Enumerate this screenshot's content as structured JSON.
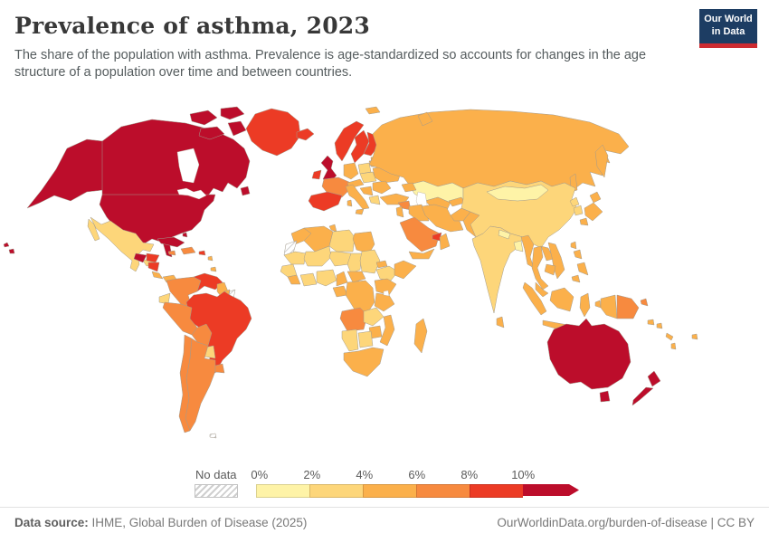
{
  "header": {
    "title": "Prevalence of asthma, 2023",
    "subtitle": "The share of the population with asthma. Prevalence is age-standardized so accounts for changes in the age structure of a population over time and between countries.",
    "logo": {
      "line1": "Our World",
      "line2": "in Data",
      "bg_color": "#1d3d63",
      "accent_color": "#cd2b31"
    }
  },
  "chart_data": {
    "type": "heatmap",
    "variant": "choropleth-world-map",
    "title": "Prevalence of asthma, 2023",
    "metric": "Share of the population with asthma (age-standardized)",
    "year": "2023",
    "legend": {
      "no_data_label": "No data",
      "tick_labels": [
        "0%",
        "2%",
        "4%",
        "6%",
        "8%",
        "10%"
      ],
      "bin_ranges": [
        "0–2%",
        "2–4%",
        "4–6%",
        "6–8%",
        "8–10%",
        "10%+"
      ],
      "bin_colors": [
        "#fef3a7",
        "#fdd67a",
        "#fbb04b",
        "#f78a3f",
        "#ec3b25",
        "#bc0d2b"
      ],
      "no_data_pattern": "gray-diagonal-hatch",
      "position": "bottom"
    },
    "region_bins": {
      "canada": 5,
      "alaska": 5,
      "usa": 5,
      "hawaii": 5,
      "greenland": 4,
      "mexico": 1,
      "guatemala": 5,
      "honduras": 4,
      "nicaragua": 4,
      "costa-rica": 2,
      "panama": 2,
      "cuba": 5,
      "bahamas": 5,
      "jamaica": 3,
      "hispaniola": 3,
      "puerto-rico": 4,
      "lesser-antilles": 2,
      "trinidad": 2,
      "colombia": 3,
      "venezuela": 4,
      "guyana": 2,
      "suriname": 2,
      "french-guiana": "nodata",
      "ecuador": 1,
      "peru": 3,
      "brazil": 4,
      "bolivia": 3,
      "paraguay": 1,
      "uruguay": 3,
      "argentina": 3,
      "chile": 3,
      "falkland-islands": "nodata",
      "iceland": 4,
      "uk": 5,
      "ireland": 4,
      "norway": 4,
      "sweden": 4,
      "finland": 4,
      "denmark": 2,
      "baltics": 2,
      "germany": 2,
      "france": 3,
      "spain-portugal": 4,
      "italy": 2,
      "sicily": 2,
      "sardinia": 2,
      "alpine-states": 2,
      "poland": 1,
      "belarus": 2,
      "ukraine": 2,
      "czech-hungary": 1,
      "romania-bulgaria": 2,
      "balkans": 2,
      "greece": 1,
      "russia": 2,
      "svalbard": 2,
      "novaya-zemlya": 2,
      "kamchatka": 2,
      "sakhalin": 2,
      "turkey": 2,
      "caucasus": 2,
      "syria": 3,
      "iraq": 2,
      "jordan-israel": 2,
      "saudi-arabia": 3,
      "uae-qatar": 4,
      "oman": 2,
      "yemen": 2,
      "iran": 2,
      "kazakhstan": 0,
      "central-asia": 2,
      "kyrgyz-tajik": 2,
      "afghanistan": 2,
      "pakistan": 2,
      "india": 1,
      "nepal": 0,
      "bangladesh": 0,
      "sri-lanka": 2,
      "china": 1,
      "mongolia": 0,
      "north-korea": 1,
      "south-korea": 1,
      "japan": 2,
      "taiwan": 2,
      "myanmar": 2,
      "thailand": 2,
      "laos": 2,
      "vietnam": 2,
      "cambodia": 2,
      "malaysia": 2,
      "indonesia": 2,
      "timor": 2,
      "philippines": 2,
      "indonesian-papua": 2,
      "papua-new-guinea": 3,
      "new-britain": 3,
      "morocco": 2,
      "western-sahara": "nodata",
      "algeria": 2,
      "tunisia": 2,
      "libya": 1,
      "egypt": 2,
      "mauritania": 1,
      "mali": 1,
      "niger": 1,
      "chad": 1,
      "sudan": 1,
      "eritrea": 2,
      "ethiopia": 1,
      "somalia": 2,
      "senegal-guinea": 1,
      "sierra-leone-liberia": 2,
      "ivory-coast-ghana": 1,
      "nigeria": 1,
      "cameroon": 2,
      "central-african-republic": 2,
      "gabon-congo": 2,
      "drc": 2,
      "uganda-kenya": 2,
      "tanzania": 2,
      "angola": 3,
      "zambia": 1,
      "malawi-mozambique": 2,
      "zimbabwe": 2,
      "namibia": 1,
      "botswana": 1,
      "south-africa": 2,
      "madagascar": 2,
      "australia": 5,
      "tasmania": 5,
      "new-zealand-north": 5,
      "new-zealand-south": 5,
      "new-caledonia": 2,
      "fiji": 2,
      "solomon-islands": 2,
      "vanuatu": 2
    }
  },
  "footer": {
    "source_label": "Data source:",
    "source_value": " IHME, Global Burden of Disease (2025)",
    "link_text": "OurWorldinData.org/burden-of-disease | CC BY"
  }
}
